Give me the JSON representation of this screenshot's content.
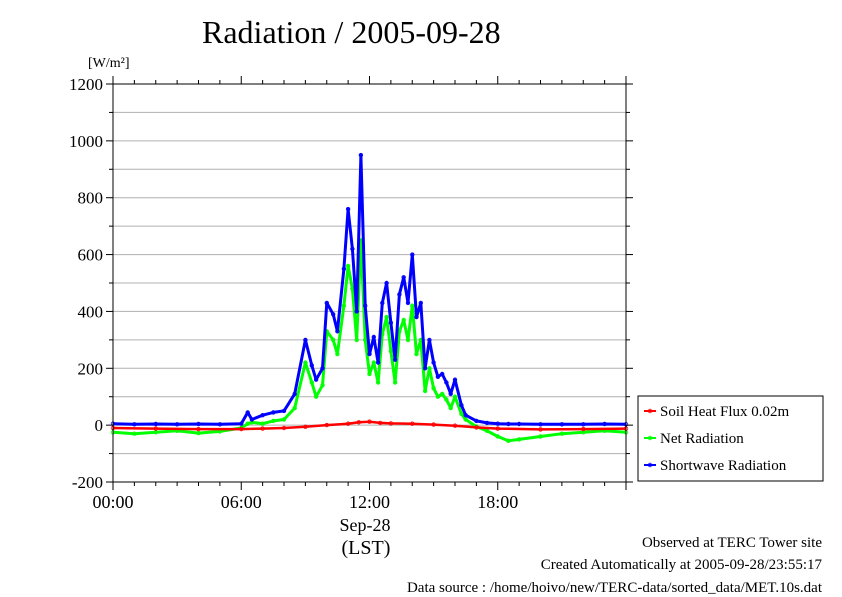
{
  "title": "Radiation / 2005-09-28",
  "unit_label": "[W/m²]",
  "x_date_label": "Sep-28",
  "x_zone_label": "(LST)",
  "footer": {
    "line1": "Observed at TERC Tower site",
    "line2": "Created Automatically at 2005-09-28/23:55:17",
    "line3": "Data source : /home/hoivo/new/TERC-data/sorted_data/MET.10s.dat"
  },
  "colors": {
    "soil_heat_flux": "#ff0000",
    "net_radiation": "#00ff00",
    "shortwave_radiation": "#0000ff",
    "grid": "#b0b0b0"
  },
  "chart_data": {
    "type": "line",
    "title": "Radiation / 2005-09-28",
    "ylabel": "[W/m²]",
    "xlabel": "",
    "ylim": [
      -200,
      1200
    ],
    "xlim_hours": [
      0,
      24
    ],
    "y_ticks": [
      -200,
      0,
      200,
      400,
      600,
      800,
      1000,
      1200
    ],
    "x_ticks": [
      {
        "hour": 0,
        "label": "00:00"
      },
      {
        "hour": 6,
        "label": "06:00"
      },
      {
        "hour": 12,
        "label": "12:00"
      },
      {
        "hour": 18,
        "label": "18:00"
      }
    ],
    "grid": true,
    "legend_position": "right",
    "x_unit": "hour of day (LST)",
    "series": [
      {
        "name": "Soil Heat Flux 0.02m",
        "x": [
          0,
          2,
          4,
          6,
          7,
          8,
          9,
          10,
          11,
          11.5,
          12,
          12.5,
          13,
          14,
          15,
          16,
          17,
          18,
          20,
          22,
          24
        ],
        "values": [
          -10,
          -12,
          -14,
          -14,
          -12,
          -10,
          -6,
          0,
          5,
          10,
          12,
          8,
          6,
          5,
          2,
          -2,
          -8,
          -12,
          -15,
          -14,
          -12
        ]
      },
      {
        "name": "Net Radiation",
        "x": [
          0,
          1,
          2,
          3,
          4,
          5,
          6,
          6.3,
          6.5,
          7,
          7.5,
          8,
          8.5,
          9,
          9.3,
          9.5,
          9.8,
          10,
          10.3,
          10.5,
          10.8,
          11,
          11.2,
          11.4,
          11.6,
          11.8,
          12,
          12.2,
          12.4,
          12.6,
          12.8,
          13,
          13.2,
          13.4,
          13.6,
          13.8,
          14,
          14.2,
          14.4,
          14.6,
          14.8,
          15,
          15.2,
          15.4,
          15.6,
          15.8,
          16,
          16.3,
          16.5,
          17,
          17.5,
          18,
          18.5,
          19,
          20,
          21,
          22,
          23,
          24
        ],
        "values": [
          -25,
          -30,
          -25,
          -20,
          -28,
          -22,
          -10,
          5,
          10,
          5,
          15,
          20,
          60,
          220,
          150,
          100,
          140,
          330,
          300,
          250,
          420,
          560,
          480,
          300,
          650,
          300,
          180,
          220,
          150,
          320,
          380,
          260,
          150,
          330,
          370,
          300,
          420,
          250,
          300,
          120,
          200,
          130,
          100,
          110,
          90,
          60,
          100,
          40,
          20,
          -5,
          -20,
          -40,
          -55,
          -50,
          -40,
          -30,
          -25,
          -20,
          -25
        ]
      },
      {
        "name": "Shortwave Radiation",
        "x": [
          0,
          1,
          2,
          3,
          4,
          5,
          6,
          6.3,
          6.5,
          7,
          7.5,
          8,
          8.5,
          9,
          9.3,
          9.5,
          9.8,
          10,
          10.3,
          10.5,
          10.8,
          11,
          11.2,
          11.4,
          11.6,
          11.8,
          12,
          12.2,
          12.4,
          12.6,
          12.8,
          13,
          13.2,
          13.4,
          13.6,
          13.8,
          14,
          14.2,
          14.4,
          14.6,
          14.8,
          15,
          15.2,
          15.4,
          15.6,
          15.8,
          16,
          16.3,
          16.5,
          17,
          17.5,
          18,
          18.5,
          19,
          20,
          21,
          22,
          23,
          24
        ],
        "values": [
          5,
          3,
          4,
          3,
          4,
          3,
          5,
          45,
          20,
          35,
          45,
          50,
          110,
          300,
          210,
          160,
          200,
          430,
          390,
          330,
          550,
          760,
          620,
          400,
          950,
          420,
          250,
          310,
          220,
          430,
          500,
          360,
          230,
          460,
          520,
          430,
          600,
          380,
          430,
          200,
          300,
          220,
          170,
          180,
          150,
          110,
          160,
          70,
          35,
          15,
          8,
          5,
          4,
          4,
          3,
          3,
          3,
          4,
          3
        ]
      }
    ]
  }
}
